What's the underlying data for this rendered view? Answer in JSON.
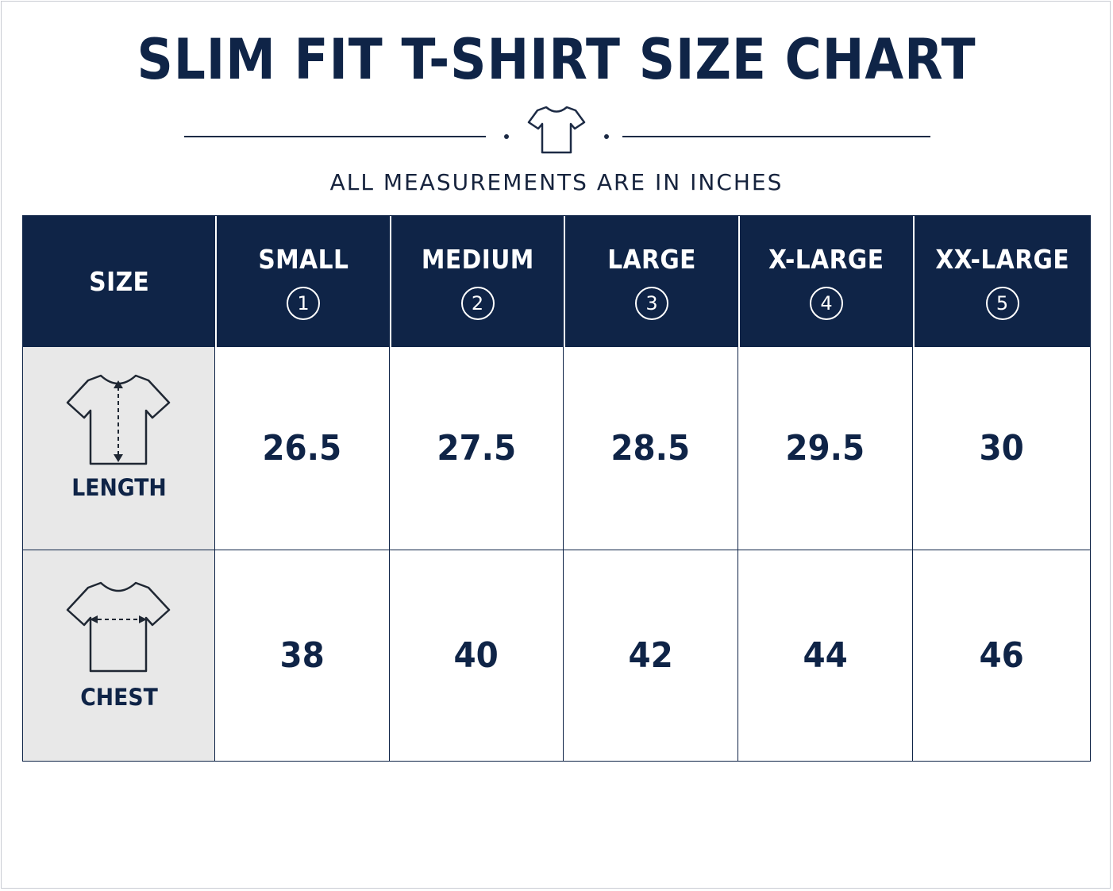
{
  "title": "SLIM FIT T-SHIRT SIZE CHART",
  "subtitle": "ALL MEASUREMENTS ARE IN INCHES",
  "header_icon": "t-shirt-icon",
  "table": {
    "corner_label": "SIZE",
    "sizes": [
      {
        "label": "SMALL",
        "number": "1"
      },
      {
        "label": "MEDIUM",
        "number": "2"
      },
      {
        "label": "LARGE",
        "number": "3"
      },
      {
        "label": "X-LARGE",
        "number": "4"
      },
      {
        "label": "XX-LARGE",
        "number": "5"
      }
    ],
    "rows": [
      {
        "label": "LENGTH",
        "icon": "t-shirt-length-icon",
        "values": [
          "26.5",
          "27.5",
          "28.5",
          "29.5",
          "30"
        ]
      },
      {
        "label": "CHEST",
        "icon": "t-shirt-chest-icon",
        "values": [
          "38",
          "40",
          "42",
          "44",
          "46"
        ]
      }
    ]
  },
  "colors": {
    "navy": "#0f2447",
    "label_bg": "#e8e8e8",
    "background": "#ffffff"
  }
}
